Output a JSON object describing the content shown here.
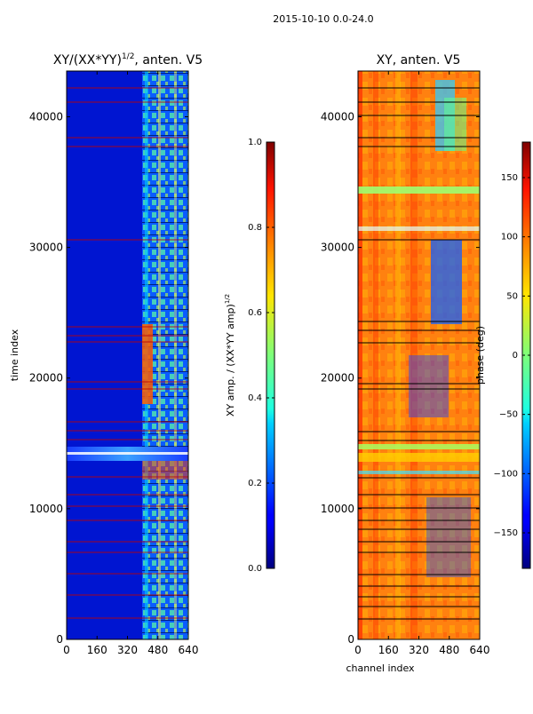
{
  "figure": {
    "suptitle": "2015-10-10 0.0-24.0"
  },
  "chart_data": [
    {
      "type": "heatmap",
      "title": "XY/(XX*YY)^{1/2}, anten. V5",
      "title_text": "XY/(XX*YY)",
      "title_sup": "1/2",
      "title_suffix": ", anten. V5",
      "xlabel": "",
      "ylabel": "time index",
      "xlim": [
        0,
        640
      ],
      "ylim": [
        0,
        43500
      ],
      "xticks": [
        "0",
        "160",
        "320",
        "480",
        "640"
      ],
      "yticks": [
        "0",
        "10000",
        "20000",
        "30000",
        "40000"
      ],
      "xtick_values": [
        0,
        160,
        320,
        480,
        640
      ],
      "ytick_values": [
        0,
        10000,
        20000,
        30000,
        40000
      ],
      "colormap": "jet",
      "colorbar": {
        "label": "XY amp. / (XX*YY amp)^{1/2}",
        "label_text": "XY amp. / (XX*YY amp)",
        "label_sup": "1/2",
        "range": [
          0.0,
          1.0
        ],
        "ticks": [
          "0.0",
          "0.2",
          "0.4",
          "0.6",
          "0.8",
          "1.0"
        ],
        "tick_values": [
          0.0,
          0.2,
          0.4,
          0.6,
          0.8,
          1.0
        ]
      }
    },
    {
      "type": "heatmap",
      "title": "XY, anten. V5",
      "xlabel": "channel index",
      "ylabel": "",
      "xlim": [
        0,
        640
      ],
      "ylim": [
        0,
        43500
      ],
      "xticks": [
        "0",
        "160",
        "320",
        "480",
        "640"
      ],
      "yticks": [
        "0",
        "10000",
        "20000",
        "30000",
        "40000"
      ],
      "xtick_values": [
        0,
        160,
        320,
        480,
        640
      ],
      "ytick_values": [
        0,
        10000,
        20000,
        30000,
        40000
      ],
      "colormap": "jet",
      "colorbar": {
        "label": "phase (deg)",
        "range": [
          -180,
          180
        ],
        "ticks": [
          "−150",
          "−100",
          "−50",
          "0",
          "50",
          "100",
          "150"
        ],
        "tick_values": [
          -150,
          -100,
          -50,
          0,
          50,
          100,
          150
        ]
      }
    }
  ]
}
